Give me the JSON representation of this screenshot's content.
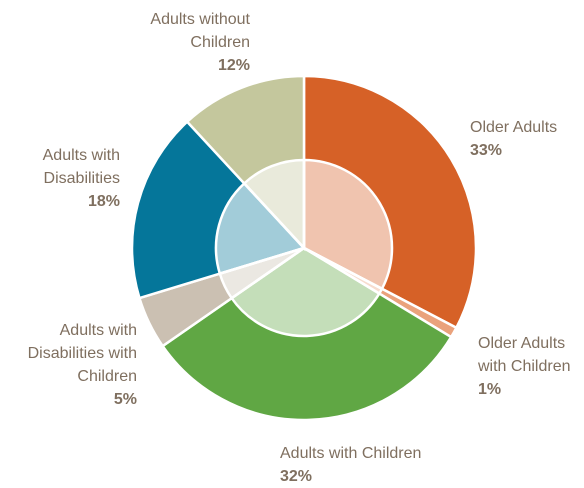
{
  "chart_data": {
    "type": "pie",
    "title": "",
    "slices": [
      {
        "name": "Older Adults",
        "value": 33,
        "label": "33%",
        "color": "#d66127"
      },
      {
        "name": "Older Adults with Children",
        "value": 1,
        "label": "1%",
        "color": "#eaa27c"
      },
      {
        "name": "Adults with Children",
        "value": 32,
        "label": "32%",
        "color": "#60a744"
      },
      {
        "name": "Adults with Disabilities with Children",
        "value": 5,
        "label": "5%",
        "color": "#cbc0b2"
      },
      {
        "name": "Adults with Disabilities",
        "value": 18,
        "label": "18%",
        "color": "#05769a"
      },
      {
        "name": "Adults without Children",
        "value": 12,
        "label": "12%",
        "color": "#c4c79d"
      }
    ],
    "legend": "none"
  }
}
